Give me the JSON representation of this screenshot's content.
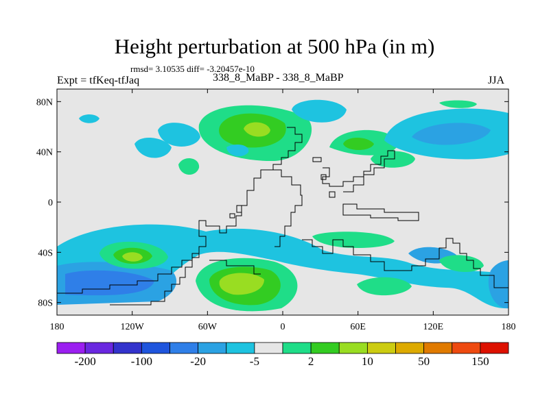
{
  "title": "Height perturbation at 500 hPa (in m)",
  "stats_line": "rmsd= 3.10535 diff= -3.20457e-10",
  "left_label": "Expt = tfKeq-tfJaq",
  "center_label": "338_8_MaBP - 338_8_MaBP",
  "right_label": "JJA",
  "map": {
    "lon_range": [
      -180,
      180
    ],
    "lat_range": [
      -90,
      90
    ],
    "background_color": "#e6e6e6",
    "lat_ticks": [
      {
        "value": 80,
        "label": "80N"
      },
      {
        "value": 40,
        "label": "40N"
      },
      {
        "value": 0,
        "label": "0"
      },
      {
        "value": -40,
        "label": "40S"
      },
      {
        "value": -80,
        "label": "80S"
      }
    ],
    "lon_ticks": [
      {
        "value": -180,
        "label": "180"
      },
      {
        "value": -120,
        "label": "120W"
      },
      {
        "value": -60,
        "label": "60W"
      },
      {
        "value": 0,
        "label": "0"
      },
      {
        "value": 60,
        "label": "60E"
      },
      {
        "value": 120,
        "label": "120E"
      },
      {
        "value": 180,
        "label": "180"
      }
    ]
  },
  "colorbar": {
    "colors": [
      "#9b1ff0",
      "#6a28e0",
      "#3333cc",
      "#1f55dd",
      "#2f7fe8",
      "#2ba2e3",
      "#1ec3e0",
      "#e6e6e6",
      "#1fdd88",
      "#33cc22",
      "#99dd22",
      "#cccc11",
      "#ddaa00",
      "#e07a00",
      "#ee4a10",
      "#dd1100"
    ],
    "labels": [
      {
        "text": "-200",
        "boundary": 1
      },
      {
        "text": "-100",
        "boundary": 3
      },
      {
        "text": "-20",
        "boundary": 5
      },
      {
        "text": "-5",
        "boundary": 7
      },
      {
        "text": "2",
        "boundary": 9
      },
      {
        "text": "10",
        "boundary": 11
      },
      {
        "text": "50",
        "boundary": 13
      },
      {
        "text": "150",
        "boundary": 15
      }
    ]
  },
  "anomalies": [
    {
      "lon": -140,
      "lat": -46,
      "rx": 26,
      "ry": 11,
      "levels": [
        "#1fdd88",
        "#33cc22",
        "#99dd22"
      ]
    },
    {
      "lon": -35,
      "lat": -62,
      "rx": 42,
      "ry": 17,
      "levels": [
        "#1fdd88",
        "#33cc22",
        "#99dd22"
      ]
    },
    {
      "lon": -20,
      "lat": 55,
      "rx": 24,
      "ry": 13,
      "levels": [
        "#1fdd88",
        "#33cc22",
        "#99dd22"
      ]
    },
    {
      "lon": 53,
      "lat": 45,
      "rx": 16,
      "ry": 7,
      "levels": [
        "#1fdd88",
        "#33cc22"
      ]
    },
    {
      "lon": 93,
      "lat": -67,
      "rx": 20,
      "ry": 9,
      "levels": [
        "#1ec3e0"
      ]
    },
    {
      "lon": -150,
      "lat": -66,
      "rx": 34,
      "ry": 13,
      "levels": [
        "#1ec3e0",
        "#2ba2e3",
        "#2f7fe8"
      ]
    },
    {
      "lon": 135,
      "lat": 50,
      "rx": 32,
      "ry": 12,
      "levels": [
        "#1ec3e0",
        "#2ba2e3"
      ]
    }
  ]
}
